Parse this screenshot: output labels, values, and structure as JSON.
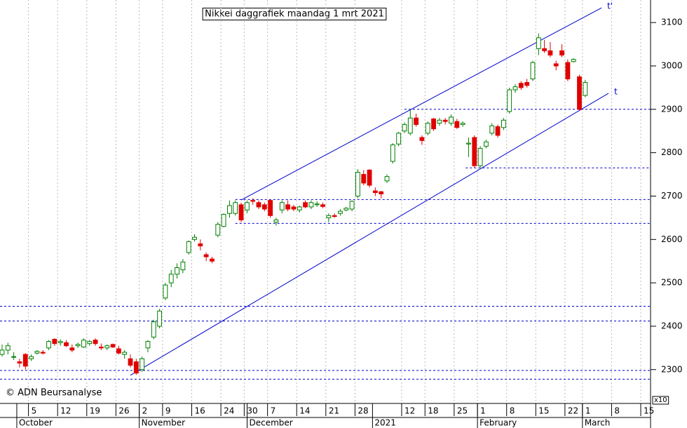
{
  "chart_data": {
    "type": "candlestick",
    "title": "Nikkei daggrafiek maandag 1 mrt 2021",
    "copyright": "© ADN Beursanalyse",
    "y_scale_note": "x10",
    "up_color": "#008000",
    "down_color": "#e00000",
    "line_color": "#0000cc",
    "x": [
      0,
      1,
      2,
      3,
      4,
      5,
      6,
      7,
      8,
      9,
      10,
      11,
      12,
      13,
      14,
      15,
      16,
      17,
      18,
      19,
      20,
      21,
      22,
      23,
      24,
      25,
      26,
      27,
      28,
      29,
      30,
      31,
      32,
      33,
      34,
      35,
      36,
      37,
      38,
      39,
      40,
      41,
      42,
      43,
      44,
      45,
      46,
      47,
      48,
      49,
      50,
      51,
      52,
      53,
      54,
      55,
      56,
      57,
      58,
      59,
      60,
      61,
      62,
      63,
      64,
      65,
      66,
      67,
      68,
      69,
      70,
      71,
      72,
      73,
      74,
      75,
      76,
      77,
      78,
      79,
      80,
      81,
      82,
      83,
      84,
      85,
      86,
      87,
      88,
      89,
      90,
      91,
      92,
      93,
      94,
      95,
      96,
      97,
      98,
      99,
      100
    ],
    "open": [
      2335,
      2345,
      2330,
      2318,
      2335,
      2325,
      2338,
      2340,
      2350,
      2370,
      2362,
      2362,
      2350,
      2355,
      2352,
      2360,
      2368,
      2352,
      2350,
      2358,
      2348,
      2335,
      2325,
      2318,
      2300,
      2350,
      2375,
      2400,
      2465,
      2500,
      2520,
      2530,
      2570,
      2600,
      2590,
      2565,
      2555,
      2610,
      2630,
      2660,
      2660,
      2680,
      2668,
      2690,
      2685,
      2680,
      2690,
      2640,
      2668,
      2680,
      2675,
      2668,
      2685,
      2675,
      2680,
      2680,
      2650,
      2655,
      2660,
      2668,
      2670,
      2700,
      2750,
      2760,
      2712,
      2710,
      2735,
      2780,
      2820,
      2850,
      2845,
      2880,
      2835,
      2845,
      2878,
      2868,
      2875,
      2868,
      2872,
      2865,
      2820,
      2835,
      2770,
      2815,
      2845,
      2860,
      2858,
      2895,
      2945,
      2960,
      2962,
      2970,
      3040,
      3040,
      3035,
      3005,
      3035,
      3008,
      3010,
      2975,
      2932
    ],
    "high": [
      2358,
      2362,
      2340,
      2325,
      2338,
      2335,
      2345,
      2345,
      2368,
      2372,
      2370,
      2368,
      2358,
      2362,
      2372,
      2368,
      2372,
      2360,
      2358,
      2360,
      2355,
      2345,
      2335,
      2325,
      2330,
      2368,
      2415,
      2440,
      2500,
      2530,
      2545,
      2555,
      2598,
      2612,
      2600,
      2570,
      2560,
      2640,
      2660,
      2690,
      2690,
      2685,
      2690,
      2695,
      2690,
      2685,
      2692,
      2650,
      2690,
      2690,
      2680,
      2678,
      2690,
      2690,
      2688,
      2685,
      2660,
      2660,
      2670,
      2675,
      2690,
      2762,
      2760,
      2762,
      2720,
      2712,
      2750,
      2822,
      2848,
      2870,
      2900,
      2890,
      2840,
      2872,
      2880,
      2880,
      2880,
      2888,
      2878,
      2872,
      2835,
      2840,
      2815,
      2830,
      2868,
      2865,
      2880,
      2950,
      2958,
      2965,
      2970,
      3012,
      3075,
      3060,
      3055,
      3012,
      3050,
      3015,
      3018,
      2980,
      2968
    ],
    "low": [
      2330,
      2335,
      2322,
      2305,
      2300,
      2320,
      2335,
      2335,
      2345,
      2355,
      2355,
      2352,
      2340,
      2350,
      2350,
      2355,
      2355,
      2345,
      2345,
      2350,
      2335,
      2325,
      2305,
      2288,
      2295,
      2340,
      2370,
      2395,
      2460,
      2490,
      2510,
      2522,
      2565,
      2595,
      2575,
      2550,
      2545,
      2605,
      2628,
      2650,
      2655,
      2640,
      2660,
      2680,
      2670,
      2665,
      2650,
      2632,
      2660,
      2665,
      2665,
      2662,
      2672,
      2670,
      2675,
      2672,
      2640,
      2650,
      2655,
      2665,
      2665,
      2695,
      2725,
      2720,
      2700,
      2695,
      2730,
      2775,
      2815,
      2845,
      2840,
      2860,
      2818,
      2840,
      2850,
      2862,
      2865,
      2862,
      2855,
      2860,
      2790,
      2765,
      2765,
      2810,
      2840,
      2835,
      2852,
      2890,
      2938,
      2945,
      2950,
      2965,
      3025,
      3030,
      3020,
      2990,
      3020,
      2965,
      3008,
      2898,
      2928
    ],
    "close": [
      2345,
      2355,
      2330,
      2315,
      2308,
      2330,
      2342,
      2338,
      2365,
      2360,
      2365,
      2355,
      2345,
      2358,
      2368,
      2365,
      2360,
      2350,
      2355,
      2352,
      2338,
      2340,
      2310,
      2292,
      2325,
      2365,
      2410,
      2435,
      2495,
      2520,
      2535,
      2548,
      2595,
      2605,
      2585,
      2560,
      2550,
      2635,
      2658,
      2678,
      2685,
      2645,
      2685,
      2688,
      2675,
      2670,
      2655,
      2645,
      2685,
      2670,
      2670,
      2675,
      2675,
      2685,
      2682,
      2676,
      2655,
      2653,
      2665,
      2672,
      2688,
      2755,
      2730,
      2725,
      2708,
      2705,
      2745,
      2818,
      2845,
      2865,
      2880,
      2865,
      2828,
      2868,
      2855,
      2875,
      2872,
      2882,
      2858,
      2868,
      2822,
      2770,
      2810,
      2825,
      2862,
      2840,
      2875,
      2945,
      2952,
      2950,
      2955,
      3008,
      3065,
      3035,
      3025,
      3000,
      3025,
      2970,
      3015,
      2900,
      2962
    ],
    "xlim": [
      -0.36,
      111.2
    ],
    "ylim": [
      2222,
      3152
    ],
    "yticks": [
      2300,
      2400,
      2500,
      2600,
      2700,
      2800,
      2900,
      3000,
      3100
    ],
    "xticks": [
      {
        "value": 5,
        "label": "5"
      },
      {
        "value": 10,
        "label": "12"
      },
      {
        "value": 15,
        "label": "19"
      },
      {
        "value": 20,
        "label": "26"
      },
      {
        "value": 24,
        "label": "2"
      },
      {
        "value": 28,
        "label": "9"
      },
      {
        "value": 33,
        "label": "16"
      },
      {
        "value": 38,
        "label": "24"
      },
      {
        "value": 42,
        "label": "30"
      },
      {
        "value": 46,
        "label": "7"
      },
      {
        "value": 51,
        "label": "14"
      },
      {
        "value": 56,
        "label": "21"
      },
      {
        "value": 61,
        "label": "28"
      },
      {
        "value": 69,
        "label": "12"
      },
      {
        "value": 73,
        "label": "18"
      },
      {
        "value": 78,
        "label": "25"
      },
      {
        "value": 82,
        "label": "1"
      },
      {
        "value": 87,
        "label": "8"
      },
      {
        "value": 92,
        "label": "15"
      },
      {
        "value": 97,
        "label": "22"
      },
      {
        "value": 100,
        "label": "1"
      },
      {
        "value": 105,
        "label": "8"
      },
      {
        "value": 110,
        "label": "15"
      }
    ],
    "months": [
      {
        "value": 3,
        "label": "October"
      },
      {
        "value": 24,
        "label": "November"
      },
      {
        "value": 42.5,
        "label": "December"
      },
      {
        "value": 64,
        "label": "2021"
      },
      {
        "value": 82,
        "label": "February"
      },
      {
        "value": 100,
        "label": "March"
      }
    ],
    "hlines": [
      {
        "value": 2900,
        "from": 69
      },
      {
        "value": 2765,
        "from": 79.5
      },
      {
        "value": 2692,
        "from": 40
      },
      {
        "value": 2637,
        "from": 40
      },
      {
        "value": 2446
      },
      {
        "value": 2412
      },
      {
        "value": 2298
      },
      {
        "value": 2278
      }
    ],
    "trendlines": [
      {
        "label": "t",
        "x": [
          22,
          104
        ],
        "y": [
          2287,
          2937
        ]
      },
      {
        "label": "t'",
        "x": [
          41,
          102.8
        ],
        "y": [
          2691,
          3134
        ]
      }
    ],
    "grid": true
  }
}
